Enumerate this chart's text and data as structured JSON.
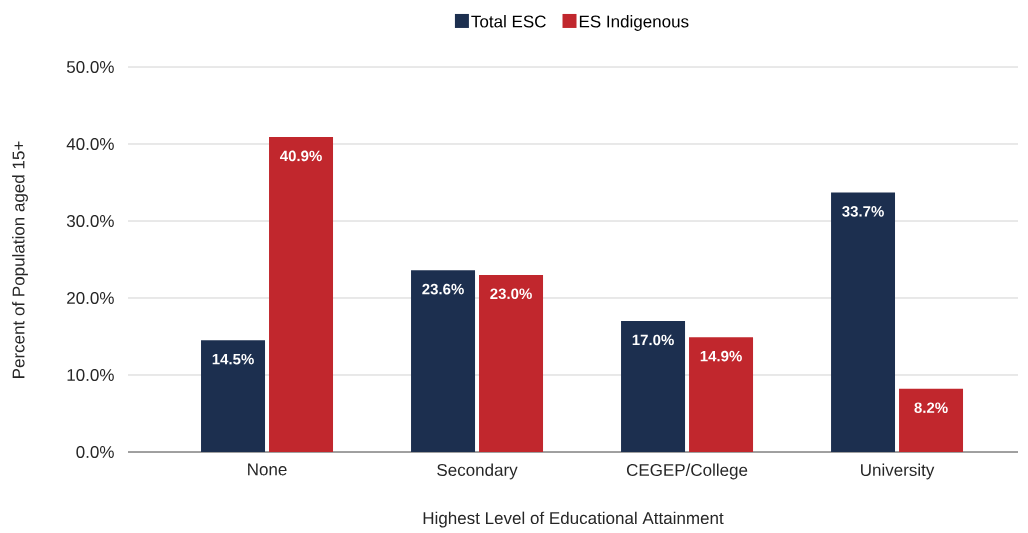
{
  "chart_data": {
    "type": "bar",
    "xlabel": "Highest Level of Educational Attainment",
    "ylabel": "Percent of Population aged 15+",
    "categories": [
      "None",
      "Secondary",
      "CEGEP/College",
      "University"
    ],
    "series": [
      {
        "name": "Total ESC",
        "color": "#1c2f4f",
        "values": [
          14.5,
          23.6,
          17.0,
          33.7
        ],
        "value_labels": [
          "14.5%",
          "23.6%",
          "17.0%",
          "33.7%"
        ]
      },
      {
        "name": "ES Indigenous",
        "color": "#c1272d",
        "values": [
          40.9,
          23.0,
          14.9,
          8.2
        ],
        "value_labels": [
          "40.9%",
          "23.0%",
          "14.9%",
          "8.2%"
        ]
      }
    ],
    "ylim": [
      0,
      50
    ],
    "yticks": [
      {
        "value": 0,
        "label": "0.0%"
      },
      {
        "value": 10,
        "label": "10.0%"
      },
      {
        "value": 20,
        "label": "20.0%"
      },
      {
        "value": 30,
        "label": "30.0%"
      },
      {
        "value": 40,
        "label": "40.0%"
      },
      {
        "value": 50,
        "label": "50.0%"
      }
    ],
    "grid": "y",
    "legend": "top"
  }
}
